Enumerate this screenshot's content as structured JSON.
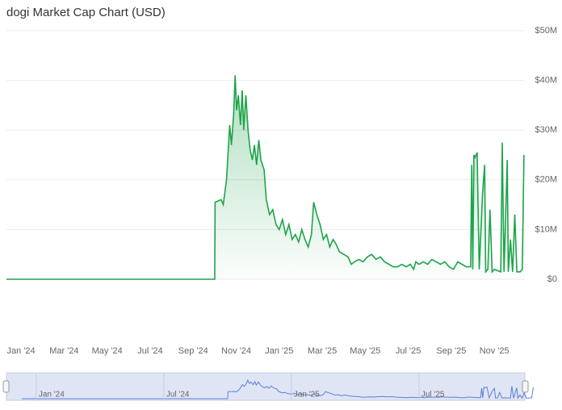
{
  "chart_data": {
    "type": "area",
    "title": "dogi Market Cap Chart (USD)",
    "x": [
      -0.68,
      9.0,
      9.02,
      9.3,
      9.4,
      9.55,
      9.7,
      9.78,
      9.88,
      9.95,
      10.02,
      10.1,
      10.2,
      10.28,
      10.35,
      10.45,
      10.55,
      10.65,
      10.75,
      10.85,
      10.95,
      11.05,
      11.15,
      11.3,
      11.4,
      11.55,
      11.7,
      11.85,
      12.0,
      12.15,
      12.3,
      12.45,
      12.6,
      12.75,
      12.9,
      13.05,
      13.2,
      13.35,
      13.5,
      13.6,
      13.75,
      13.9,
      14.05,
      14.2,
      14.35,
      14.5,
      14.65,
      14.8,
      15.0,
      15.2,
      15.35,
      15.5,
      15.7,
      15.9,
      16.1,
      16.3,
      16.5,
      16.7,
      16.9,
      17.1,
      17.3,
      17.5,
      17.7,
      17.9,
      18.1,
      18.25,
      18.35,
      18.5,
      18.7,
      18.9,
      19.1,
      19.3,
      19.5,
      19.7,
      19.9,
      20.1,
      20.3,
      20.5,
      20.7,
      20.9,
      20.95,
      21.0,
      21.05,
      21.1,
      21.2,
      21.3,
      21.45,
      21.55,
      21.6,
      21.7,
      21.8,
      21.9,
      22.0,
      22.3,
      22.37,
      22.45,
      22.6,
      22.65,
      22.75,
      22.85,
      22.95,
      23.05,
      23.2,
      23.3,
      23.38
    ],
    "series": [
      {
        "name": "Market Cap",
        "color": "#1ea34b",
        "values": [
          0,
          0,
          15.5,
          16,
          15,
          20,
          31,
          27,
          33,
          41,
          34,
          37,
          31,
          38,
          30,
          37,
          30,
          26,
          24,
          27,
          23,
          28,
          24,
          22,
          16,
          13,
          14,
          11,
          10,
          12,
          9,
          11,
          8,
          9,
          7.5,
          10,
          8,
          6.5,
          9,
          15.5,
          13,
          11,
          8,
          9,
          6.5,
          8,
          7,
          5.5,
          5,
          4.5,
          3,
          3.5,
          4,
          3.5,
          4.5,
          5,
          4,
          4.5,
          3.5,
          3,
          2.5,
          2.5,
          3,
          2.5,
          3,
          2,
          3.5,
          3,
          3.5,
          3,
          4,
          3.5,
          3,
          3.5,
          2.5,
          2,
          3.5,
          3,
          2.5,
          2.5,
          23,
          2,
          25,
          24.5,
          25.5,
          2,
          17,
          23,
          1.5,
          2,
          14,
          1.5,
          2,
          1.5,
          27.5,
          1.5,
          24,
          1.5,
          8,
          1.5,
          13,
          1.5,
          1.5,
          2,
          25
        ]
      }
    ],
    "xlim": [
      -0.68,
      23.42
    ],
    "xticks": [
      {
        "value": 0,
        "label": "Jan '24"
      },
      {
        "value": 2,
        "label": "Mar '24"
      },
      {
        "value": 4,
        "label": "May '24"
      },
      {
        "value": 6,
        "label": "Jul '24"
      },
      {
        "value": 8,
        "label": "Sep '24"
      },
      {
        "value": 10,
        "label": "Nov '24"
      },
      {
        "value": 12,
        "label": "Jan '25"
      },
      {
        "value": 14,
        "label": "Mar '25"
      },
      {
        "value": 16,
        "label": "May '25"
      },
      {
        "value": 18,
        "label": "Jul '25"
      },
      {
        "value": 20,
        "label": "Sep '25"
      },
      {
        "value": 22,
        "label": "Nov '25"
      }
    ],
    "ylim": [
      0,
      50
    ],
    "yticks": [
      {
        "value": 0,
        "label": "$0"
      },
      {
        "value": 10,
        "label": "$10M"
      },
      {
        "value": 20,
        "label": "$20M"
      },
      {
        "value": 30,
        "label": "$30M"
      },
      {
        "value": 40,
        "label": "$40M"
      },
      {
        "value": 50,
        "label": "$50M"
      }
    ],
    "grid": true,
    "navigator": {
      "color": "#5b7fd6",
      "xlim": [
        -1.4,
        22.98
      ],
      "xticks": [
        {
          "value": 0,
          "label": "Jan '24"
        },
        {
          "value": 6,
          "label": "Jul '24"
        },
        {
          "value": 12,
          "label": "Jan '25"
        },
        {
          "value": 18,
          "label": "Jul '25"
        }
      ]
    }
  }
}
